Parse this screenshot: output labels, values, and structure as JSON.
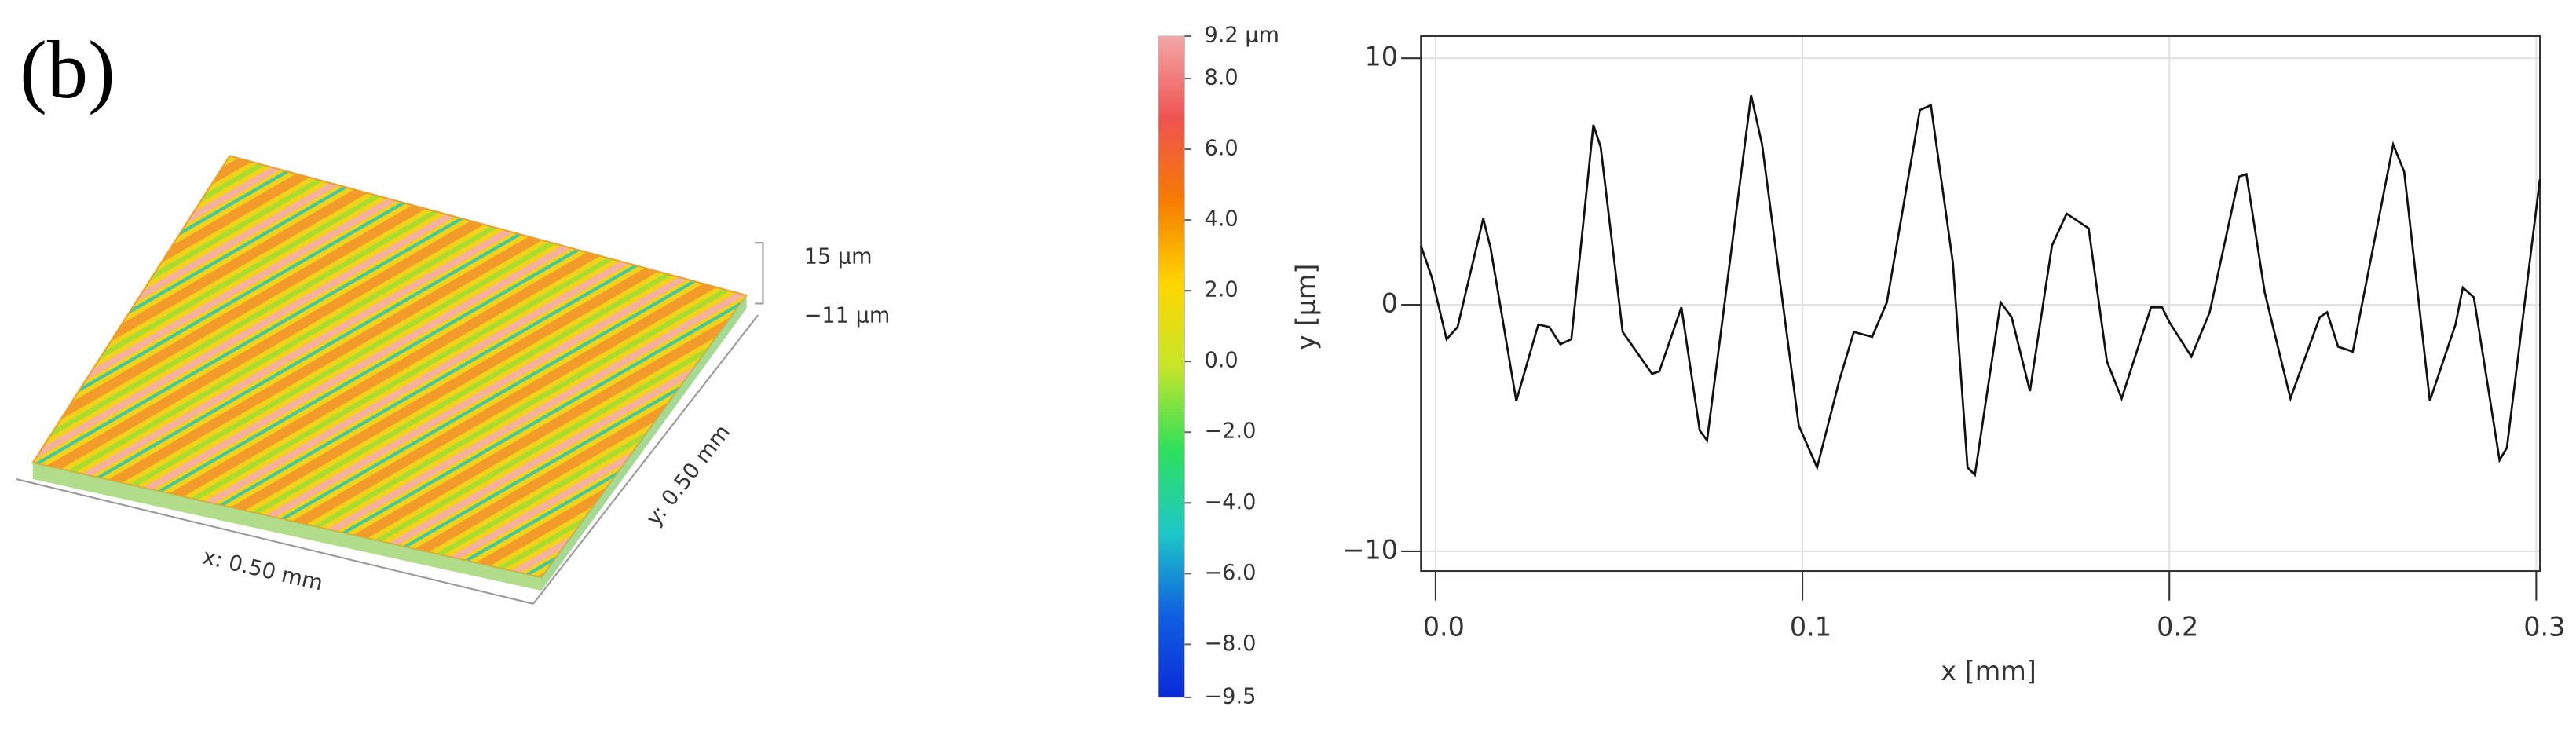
{
  "panel_label": "(b)",
  "surface": {
    "z_max_label": "15 µm",
    "z_min_label": "−11 µm",
    "x_label": "x: 0.50 mm",
    "y_label": "y: 0.50 mm"
  },
  "colorbar": {
    "lim": [
      -9.5,
      9.2
    ],
    "ticks": [
      {
        "value": 9.2,
        "label": "9.2 µm"
      },
      {
        "value": 8,
        "label": "8.0"
      },
      {
        "value": 6,
        "label": "6.0"
      },
      {
        "value": 4,
        "label": "4.0"
      },
      {
        "value": 2,
        "label": "2.0"
      },
      {
        "value": 0,
        "label": "0.0"
      },
      {
        "value": -2,
        "label": "−2.0"
      },
      {
        "value": -4,
        "label": "−4.0"
      },
      {
        "value": -6,
        "label": "−6.0"
      },
      {
        "value": -8,
        "label": "−8.0"
      },
      {
        "value": -9.5,
        "label": "−9.5"
      }
    ],
    "colors": [
      "#f4a6a6",
      "#ef5350",
      "#f57c00",
      "#ffd600",
      "#c6e52a",
      "#2ee05a",
      "#1ec8c8",
      "#1060e0",
      "#0a2ad8"
    ]
  },
  "chart_data": {
    "type": "line",
    "xlabel": "x [mm]",
    "ylabel": "y [µm]",
    "xlim": [
      -0.004,
      0.301
    ],
    "ylim": [
      -10.8,
      10.9
    ],
    "xticks": [
      {
        "value": 0,
        "label": "0.0"
      },
      {
        "value": 0.1,
        "label": "0.1"
      },
      {
        "value": 0.2,
        "label": "0.2"
      },
      {
        "value": 0.3,
        "label": "0.3"
      }
    ],
    "yticks": [
      {
        "value": -10,
        "label": "−10"
      },
      0,
      10
    ],
    "grid": true,
    "series": [
      {
        "color": "#111111",
        "x": [
          -0.004,
          -0.001,
          0.003,
          0.006,
          0.013,
          0.015,
          0.022,
          0.028,
          0.031,
          0.034,
          0.037,
          0.043,
          0.045,
          0.051,
          0.059,
          0.061,
          0.067,
          0.072,
          0.074,
          0.086,
          0.089,
          0.099,
          0.104,
          0.11,
          0.114,
          0.119,
          0.123,
          0.132,
          0.135,
          0.141,
          0.145,
          0.147,
          0.154,
          0.157,
          0.162,
          0.168,
          0.172,
          0.178,
          0.183,
          0.187,
          0.195,
          0.198,
          0.2,
          0.206,
          0.211,
          0.219,
          0.221,
          0.226,
          0.233,
          0.241,
          0.243,
          0.246,
          0.25,
          0.261,
          0.264,
          0.271,
          0.278,
          0.28,
          0.283,
          0.29,
          0.292,
          0.301
        ],
        "values": [
          2.4,
          1.1,
          -1.4,
          -0.9,
          3.5,
          2.3,
          -3.9,
          -0.8,
          -0.9,
          -1.6,
          -1.4,
          7.3,
          6.4,
          -1.1,
          -2.8,
          -2.7,
          -0.1,
          -5.1,
          -5.5,
          8.5,
          6.5,
          -4.9,
          -6.6,
          -3.1,
          -1.1,
          -1.3,
          0.1,
          7.9,
          8.1,
          1.7,
          -6.6,
          -6.9,
          0.1,
          -0.5,
          -3.5,
          2.4,
          3.7,
          3.1,
          -2.3,
          -3.8,
          -0.1,
          -0.1,
          -0.7,
          -2.1,
          -0.3,
          5.2,
          5.3,
          0.5,
          -3.8,
          -0.5,
          -0.3,
          -1.7,
          -1.9,
          6.5,
          5.4,
          -3.9,
          -0.8,
          0.7,
          0.3,
          -6.3,
          -5.8,
          5.1
        ]
      }
    ]
  }
}
